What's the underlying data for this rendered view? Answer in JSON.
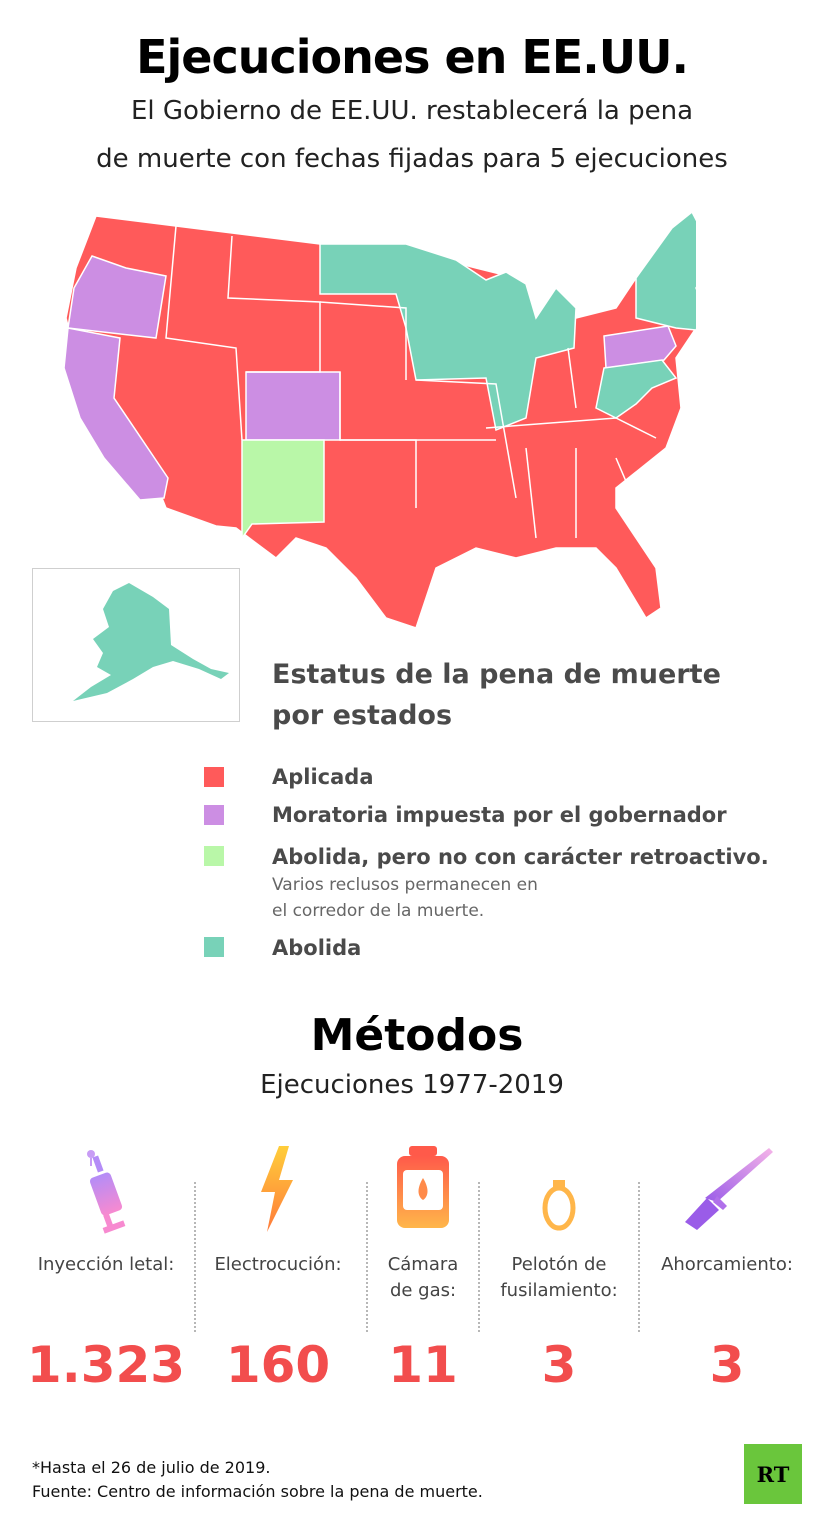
{
  "header": {
    "title": "Ejecuciones en EE.UU.",
    "subtitle_line1": "El Gobierno de EE.UU. restablecerá la pena",
    "subtitle_line2": "de muerte con fechas fijadas para 5 ejecuciones"
  },
  "colors": {
    "applied": "#ff5a5a",
    "moratorium": "#cc8ee3",
    "abolished_not_retroactive": "#b9f7a8",
    "abolished": "#78d2b8",
    "number": "#f24d4d",
    "rt_logo": "#6ac63c"
  },
  "map": {
    "legend_title_line1": "Estatus de la pena de muerte",
    "legend_title_line2": "por estados",
    "legend": [
      {
        "label": "Aplicada",
        "color": "#ff5a5a"
      },
      {
        "label": "Moratoria impuesta por el gobernador",
        "color": "#cc8ee3"
      },
      {
        "label": "Abolida, pero no con carácter retroactivo.",
        "color": "#b9f7a8",
        "note_line1": "Varios reclusos permanecen en",
        "note_line2": "el corredor de la muerte."
      },
      {
        "label": "Abolida",
        "color": "#78d2b8"
      }
    ]
  },
  "methods": {
    "title": "Métodos",
    "subtitle": "Ejecuciones 1977-2019",
    "items": [
      {
        "icon": "syringe-icon",
        "label_line1": "Inyección letal:",
        "label_line2": "",
        "value": "1.323"
      },
      {
        "icon": "lightning-icon",
        "label_line1": "Electrocución:",
        "label_line2": "",
        "value": "160"
      },
      {
        "icon": "gas-cylinder-icon",
        "label_line1": "Cámara",
        "label_line2": "de gas:",
        "value": "11"
      },
      {
        "icon": "noose-icon",
        "label_line1": "Pelotón de",
        "label_line2": "fusilamiento:",
        "value": "3"
      },
      {
        "icon": "rifle-icon",
        "label_line1": "Ahorcamiento:",
        "label_line2": "",
        "value": "3"
      }
    ]
  },
  "footer": {
    "note": "*Hasta el 26 de julio de 2019.",
    "source": "Fuente: Centro de información sobre la pena de muerte.",
    "logo_text": "RT"
  }
}
